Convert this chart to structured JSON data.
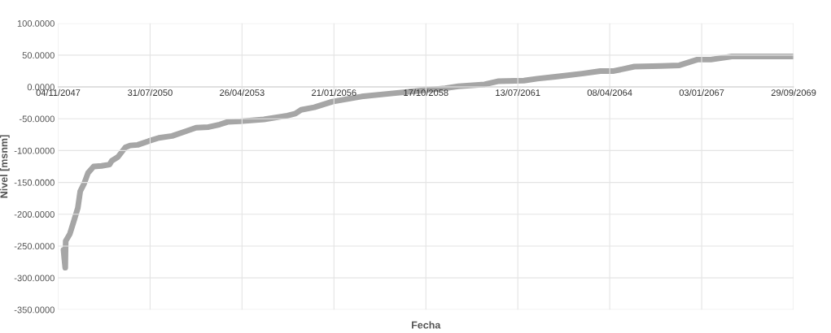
{
  "chart_data": {
    "type": "line",
    "xlabel": "Fecha",
    "ylabel": "Nivel [msnm]",
    "x": [
      "2048-01-01",
      "2048-01-10",
      "2048-01-20",
      "2048-01-25",
      "2048-03-10",
      "2048-04-22",
      "2048-06-05",
      "2048-07-01",
      "2048-08-12",
      "2048-09-24",
      "2048-11-24",
      "2049-02-18",
      "2049-05-15",
      "2049-06-09",
      "2049-08-15",
      "2049-11-03",
      "2049-12-25",
      "2050-03-18",
      "2050-07-16",
      "2050-11-03",
      "2051-03-28",
      "2051-08-14",
      "2051-12-13",
      "2052-04-28",
      "2052-08-26",
      "2052-11-21",
      "2053-04-05",
      "2053-12-20",
      "2054-09-01",
      "2054-11-27",
      "2055-01-27",
      "2055-06-21",
      "2056-01-04",
      "2056-11-16",
      "2057-10-26",
      "2058-08-04",
      "2059-05-15",
      "2059-10-05",
      "2060-07-16",
      "2060-12-08",
      "2061-09-17",
      "2062-02-10",
      "2062-08-25",
      "2063-06-13",
      "2063-12-28",
      "2064-05-22",
      "2065-01-01",
      "2065-10-19",
      "2066-05-05",
      "2066-11-17",
      "2067-04-12",
      "2067-11-28",
      "2069-09-29"
    ],
    "series": [
      {
        "color": "#a6a6a6",
        "values": [
          -256,
          -270,
          -284,
          -242,
          -231,
          -211,
          -190,
          -164,
          -152,
          -135,
          -125,
          -124,
          -122,
          -116,
          -110,
          -95,
          -92,
          -91,
          -85,
          -80,
          -77,
          -70,
          -64,
          -63,
          -59,
          -55,
          -54,
          -51,
          -45,
          -42,
          -36,
          -32,
          -23,
          -15,
          -10,
          -6,
          -2,
          1,
          4,
          9,
          10,
          13,
          16,
          21,
          25,
          25,
          32,
          33,
          34,
          43,
          43,
          48,
          48
        ]
      }
    ],
    "xlim": [
      "2047-11-04",
      "2069-09-29"
    ],
    "xticks": [
      {
        "value": "2047-11-04",
        "label": "04/11/2047"
      },
      {
        "value": "2050-07-31",
        "label": "31/07/2050"
      },
      {
        "value": "2053-04-26",
        "label": "26/04/2053"
      },
      {
        "value": "2056-01-21",
        "label": "21/01/2056"
      },
      {
        "value": "2058-10-17",
        "label": "17/10/2058"
      },
      {
        "value": "2061-07-13",
        "label": "13/07/2061"
      },
      {
        "value": "2064-04-08",
        "label": "08/04/2064"
      },
      {
        "value": "2067-01-03",
        "label": "03/01/2067"
      },
      {
        "value": "2069-09-29",
        "label": "29/09/2069"
      }
    ],
    "ylim": [
      -350,
      100
    ],
    "yticks": [
      {
        "value": 100,
        "label": "100.0000"
      },
      {
        "value": 50,
        "label": "50.0000"
      },
      {
        "value": 0,
        "label": "0.0000"
      },
      {
        "value": -50,
        "label": "-50.0000"
      },
      {
        "value": -100,
        "label": "-100.0000"
      },
      {
        "value": -150,
        "label": "-150.0000"
      },
      {
        "value": -200,
        "label": "-200.0000"
      },
      {
        "value": -250,
        "label": "-250.0000"
      },
      {
        "value": -300,
        "label": "-300.0000"
      },
      {
        "value": -350,
        "label": "-350.0000"
      }
    ],
    "grid": true,
    "marker": "none",
    "line_style": "solid"
  }
}
